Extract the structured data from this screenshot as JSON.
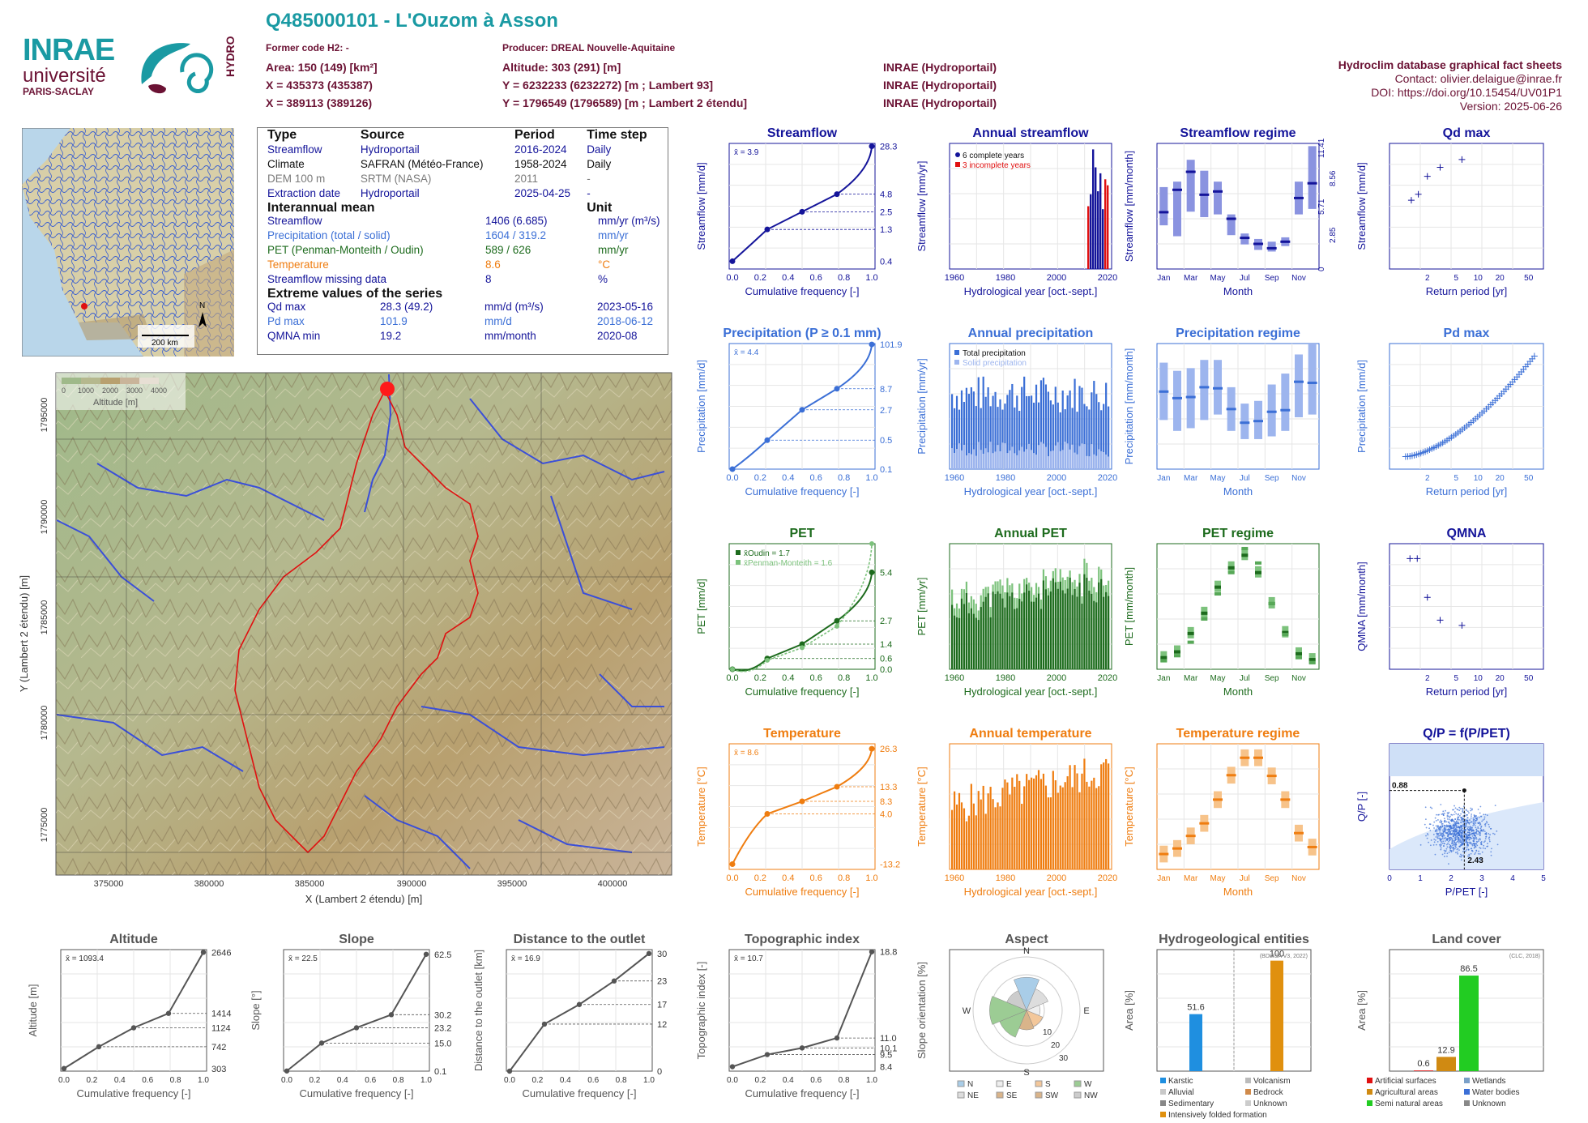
{
  "header": {
    "station_title": "Q485000101 - L'Ouzom à Asson",
    "former_code": "Former code H2: -",
    "producer": "Producer: DREAL Nouvelle-Aquitaine",
    "area": "Area: 150 (149) [km²]",
    "altitude": "Altitude: 303 (291) [m]",
    "x93": "X = 435373 (435387)",
    "y93": "Y = 6232233 (6232272) [m ; Lambert 93]",
    "x2": "X = 389113 (389126)",
    "y2": "Y = 1796549 (1796589) [m ; Lambert 2 étendu]",
    "source1": "INRAE (Hydroportail)",
    "source2": "INRAE (Hydroportail)",
    "source3": "INRAE (Hydroportail)",
    "db_title": "Hydroclim database graphical fact sheets",
    "contact": "Contact: olivier.delaigue@inrae.fr",
    "doi": "DOI: https://doi.org/10.15454/UV01P1",
    "version": "Version: 2025-06-26"
  },
  "logos": {
    "inrae": "INRAE",
    "universite": "université",
    "paris_saclay": "PARIS-SACLAY",
    "hydro": "HYDRO"
  },
  "france_map": {
    "scale": "200 km",
    "north": "N"
  },
  "info_table": {
    "headers": [
      "Type",
      "Source",
      "Period",
      "Time step"
    ],
    "rows": [
      [
        "Streamflow",
        "Hydroportail",
        "2016-2024",
        "Daily"
      ],
      [
        "Climate",
        "SAFRAN (Météo-France)",
        "1958-2024",
        "Daily"
      ],
      [
        "DEM 100 m",
        "SRTM (NASA)",
        "2011",
        "-"
      ],
      [
        "Extraction date",
        "Hydroportail",
        "2025-04-25",
        "-"
      ]
    ],
    "interannual_title": "Interannual mean",
    "unit_title": "Unit",
    "interannual": [
      [
        "Streamflow",
        "1406 (6.685)",
        "mm/yr (m³/s)"
      ],
      [
        "Precipitation (total / solid)",
        "1604 / 319.2",
        "mm/yr"
      ],
      [
        "PET (Penman-Monteith / Oudin)",
        "589 / 626",
        "mm/yr"
      ],
      [
        "Temperature",
        "8.6",
        "°C"
      ],
      [
        "Streamflow missing data",
        "8",
        "%"
      ]
    ],
    "extreme_title": "Extreme values of the series",
    "extremes": [
      [
        "Qd max",
        "28.3 (49.2)",
        "mm/d (m³/s)",
        "2023-05-16"
      ],
      [
        "Pd max",
        "101.9",
        "mm/d",
        "2018-06-12"
      ],
      [
        "QMNA min",
        "19.2",
        "mm/month",
        "2020-08"
      ]
    ]
  },
  "catchment_map": {
    "legend_ticks": [
      "0",
      "1000",
      "2000",
      "3000",
      "4000"
    ],
    "legend_title": "Altitude [m]",
    "xlabel": "X (Lambert 2 étendu) [m]",
    "ylabel": "Y (Lambert 2 étendu) [m]",
    "xticks": [
      "375000",
      "380000",
      "385000",
      "390000",
      "395000",
      "400000"
    ],
    "yticks": [
      "1775000",
      "1780000",
      "1785000",
      "1790000",
      "1795000"
    ]
  },
  "colors": {
    "flow": "#14149a",
    "prec": "#3b6fd6",
    "prec_light": "#9db5ee",
    "pet": "#1d6b1d",
    "pet_light": "#7cc27c",
    "temp": "#ef7d10",
    "temp_light": "#f7c38a",
    "grey": "#555555",
    "regime_flow": "#8a93e0",
    "hydro_karstic": "#1f8fe0",
    "hydro_folded": "#e0900e",
    "lc_agri": "#d08a12",
    "lc_semi": "#22cc22",
    "lc_artif": "#e01010"
  },
  "panels": {
    "streamflow_cdf": {
      "title": "Streamflow",
      "ylabel": "Streamflow [mm/d]",
      "xlabel": "Cumulative frequency [-]",
      "mean": "x̄ = 3.9",
      "right_labels": [
        "28.3",
        "4.8",
        "2.5",
        "1.3",
        "0.4"
      ]
    },
    "annual_streamflow": {
      "title": "Annual streamflow",
      "ylabel": "Streamflow [mm/yr]",
      "xlabel": "Hydrological year [oct.-sept.]",
      "legend": [
        "6 complete years",
        "3 incomplete years"
      ]
    },
    "streamflow_regime": {
      "title": "Streamflow regime",
      "ylabel": "Streamflow [mm/month]",
      "xlabel": "Month",
      "right_labels": [
        "11.41",
        "8.56",
        "5.71",
        "2.85",
        "0"
      ]
    },
    "qd_max": {
      "title": "Qd max",
      "ylabel": "Streamflow [mm/d]",
      "xlabel": "Return period [yr]"
    },
    "precip_cdf": {
      "title": "Precipitation (P ≥ 0.1 mm)",
      "ylabel": "Precipitation [mm/d]",
      "xlabel": "Cumulative frequency [-]",
      "mean": "x̄ = 4.4",
      "right_labels": [
        "101.9",
        "8.7",
        "2.7",
        "0.5",
        "0.1"
      ]
    },
    "annual_precip": {
      "title": "Annual precipitation",
      "ylabel": "Precipitation [mm/yr]",
      "xlabel": "Hydrological year [oct.-sept.]",
      "legend": [
        "Total precipitation",
        "Solid precipitation"
      ]
    },
    "precip_regime": {
      "title": "Precipitation regime",
      "ylabel": "Precipitation [mm/month]",
      "xlabel": "Month"
    },
    "pd_max": {
      "title": "Pd max",
      "ylabel": "Precipitation [mm/d]",
      "xlabel": "Return period [yr]"
    },
    "pet_cdf": {
      "title": "PET",
      "ylabel": "PET [mm/d]",
      "xlabel": "Cumulative frequency [-]",
      "legend": [
        "x̄Oudin = 1.7",
        "x̄Penman-Monteith = 1.6"
      ],
      "right_labels": [
        "5.4",
        "2.7",
        "1.4",
        "0.6",
        "0.0"
      ]
    },
    "annual_pet": {
      "title": "Annual PET",
      "ylabel": "PET [mm/yr]",
      "xlabel": "Hydrological year [oct.-sept.]"
    },
    "pet_regime": {
      "title": "PET regime",
      "ylabel": "PET [mm/month]",
      "xlabel": "Month"
    },
    "qmna": {
      "title": "QMNA",
      "ylabel": "QMNA [mm/month]",
      "xlabel": "Return period [yr]"
    },
    "temp_cdf": {
      "title": "Temperature",
      "ylabel": "Temperature [°C]",
      "xlabel": "Cumulative frequency [-]",
      "mean": "x̄ = 8.6",
      "right_labels": [
        "26.3",
        "13.3",
        "8.3",
        "4.0",
        "-13.2"
      ]
    },
    "annual_temp": {
      "title": "Annual temperature",
      "ylabel": "Temperature [°C]",
      "xlabel": "Hydrological year [oct.-sept.]"
    },
    "temp_regime": {
      "title": "Temperature regime",
      "ylabel": "Temperature [°C]",
      "xlabel": "Month"
    },
    "qp": {
      "title": "Q/P = f(P/PET)",
      "ylabel": "Q/P [-]",
      "xlabel": "P/PET [-]",
      "val_y": "0.88",
      "val_x": "2.43"
    },
    "altitude": {
      "title": "Altitude",
      "ylabel": "Altitude [m]",
      "xlabel": "Cumulative frequency [-]",
      "mean": "x̄ = 1093.4",
      "right_labels": [
        "2646",
        "1414",
        "1124",
        "742",
        "303"
      ]
    },
    "slope": {
      "title": "Slope",
      "ylabel": "Slope [°]",
      "xlabel": "Cumulative frequency [-]",
      "mean": "x̄ = 22.5",
      "right_labels": [
        "62.5",
        "30.2",
        "23.2",
        "15.0",
        "0.1"
      ]
    },
    "distance": {
      "title": "Distance to the outlet",
      "ylabel": "Distance to the outlet [km]",
      "xlabel": "Cumulative frequency [-]",
      "mean": "x̄ = 16.9",
      "right_labels": [
        "30",
        "23",
        "17",
        "12",
        "0"
      ]
    },
    "topo": {
      "title": "Topographic index",
      "ylabel": "Topographic index [-]",
      "xlabel": "Cumulative frequency [-]",
      "mean": "x̄ = 10.7",
      "right_labels": [
        "18.8",
        "11.0",
        "10.1",
        "9.5",
        "8.4"
      ]
    },
    "aspect": {
      "title": "Aspect",
      "ylabel": "Slope orientation [%]",
      "dirs": [
        "N",
        "E",
        "S",
        "W"
      ],
      "legend": [
        "N",
        "E",
        "S",
        "W",
        "NE",
        "SE",
        "SW",
        "NW"
      ],
      "rings": [
        "10",
        "20",
        "30"
      ]
    },
    "hydrogeo": {
      "title": "Hydrogeological entities",
      "ylabel": "Area [%]",
      "note": "(BDLISA V3, 2022)",
      "bar_labels": [
        "51.6",
        "100"
      ],
      "legend": [
        "Karstic",
        "Volcanism",
        "Alluvial",
        "Bedrock",
        "Sedimentary",
        "Unknown",
        "Intensively folded formation"
      ]
    },
    "landcover": {
      "title": "Land cover",
      "ylabel": "Area [%]",
      "note": "(CLC, 2018)",
      "bar_labels": [
        "0.6",
        "12.9",
        "86.5"
      ],
      "legend": [
        "Artificial surfaces",
        "Wetlands",
        "Agricultural areas",
        "Water bodies",
        "Semi natural areas",
        "Unknown"
      ]
    }
  },
  "chart_data": [
    {
      "type": "line",
      "id": "streamflow_cdf",
      "title": "Streamflow",
      "x": [
        0,
        0.25,
        0.5,
        0.75,
        1.0
      ],
      "y": [
        0.4,
        1.3,
        2.5,
        4.8,
        28.3
      ],
      "ylog": true,
      "ylim": [
        0.3,
        30
      ]
    },
    {
      "type": "bar",
      "id": "annual_streamflow",
      "title": "Annual streamflow",
      "x": [
        2016,
        2017,
        2018,
        2019,
        2020,
        2021,
        2022,
        2023,
        2024
      ],
      "values": [
        1050,
        1250,
        2000,
        1700,
        1300,
        1600,
        1000,
        1500,
        1400
      ],
      "ylim": [
        0,
        2100
      ],
      "xlim": [
        1958,
        2025
      ]
    },
    {
      "type": "bar",
      "id": "streamflow_regime",
      "title": "Streamflow regime",
      "categories": [
        "Jan",
        "Feb",
        "Mar",
        "Apr",
        "May",
        "Jun",
        "Jul",
        "Aug",
        "Sep",
        "Oct",
        "Nov",
        "Dec"
      ],
      "median": [
        104,
        145,
        178,
        136,
        142,
        92,
        57,
        46,
        38,
        50,
        130,
        157
      ],
      "low": [
        80,
        60,
        105,
        95,
        100,
        62,
        45,
        35,
        32,
        42,
        100,
        110
      ],
      "high": [
        150,
        160,
        200,
        180,
        160,
        100,
        65,
        55,
        50,
        58,
        160,
        225
      ],
      "ylim": [
        0,
        230
      ]
    },
    {
      "type": "scatter",
      "id": "qd_max",
      "title": "Qd max",
      "x": [
        1.2,
        1.5,
        2.0,
        3.0,
        6.0
      ],
      "y": [
        21.5,
        22.5,
        25.5,
        27.0,
        28.3
      ],
      "xlog": true,
      "xlim": [
        0.6,
        80
      ],
      "ylim": [
        10,
        31
      ]
    },
    {
      "type": "line",
      "id": "precip_cdf",
      "title": "Precipitation (P ≥ 0.1 mm)",
      "x": [
        0,
        0.25,
        0.5,
        0.75,
        1.0
      ],
      "y": [
        0.1,
        0.5,
        2.7,
        8.7,
        101.9
      ],
      "ylog": true
    },
    {
      "type": "bar",
      "id": "annual_precip",
      "title": "Annual precipitation",
      "x_start": 1959,
      "x_end": 2024,
      "ylim": [
        500,
        2600
      ]
    },
    {
      "type": "bar",
      "id": "precip_regime",
      "title": "Precipitation regime",
      "categories": [
        "Jan",
        "Feb",
        "Mar",
        "Apr",
        "May",
        "Jun",
        "Jul",
        "Aug",
        "Sep",
        "Oct",
        "Nov",
        "Dec"
      ],
      "median": [
        142,
        130,
        132,
        150,
        148,
        110,
        85,
        88,
        105,
        108,
        160,
        158
      ],
      "low": [
        90,
        70,
        75,
        90,
        100,
        70,
        55,
        55,
        60,
        70,
        95,
        100
      ],
      "high": [
        195,
        180,
        185,
        200,
        200,
        150,
        120,
        125,
        155,
        175,
        210,
        230
      ],
      "ylim": [
        0,
        230
      ]
    },
    {
      "type": "scatter",
      "id": "pd_max",
      "title": "Pd max",
      "x_start": 1.0,
      "x_end": 60,
      "y_start": 38,
      "y_end": 102,
      "xlog": true,
      "ylim": [
        30,
        110
      ]
    },
    {
      "type": "line",
      "id": "pet_cdf",
      "title": "PET",
      "series": [
        {
          "name": "Oudin",
          "x": [
            0,
            0.25,
            0.5,
            0.75,
            1.0
          ],
          "y": [
            0.0,
            0.6,
            1.4,
            2.7,
            5.4
          ]
        },
        {
          "name": "Penman-Monteith",
          "x": [
            0,
            0.25,
            0.5,
            0.75,
            1.0
          ],
          "y": [
            0.0,
            0.5,
            1.2,
            2.4,
            7.0
          ]
        }
      ],
      "ylim": [
        0,
        7
      ]
    },
    {
      "type": "bar",
      "id": "annual_pet",
      "title": "Annual PET",
      "x_start": 1959,
      "x_end": 2024,
      "ylim": [
        450,
        720
      ]
    },
    {
      "type": "bar",
      "id": "pet_regime",
      "title": "PET regime",
      "categories": [
        "Jan",
        "Feb",
        "Mar",
        "Apr",
        "May",
        "Jun",
        "Jul",
        "Aug",
        "Sep",
        "Oct",
        "Nov",
        "Dec"
      ],
      "oudin": [
        12,
        18,
        37,
        58,
        85,
        105,
        118,
        100,
        68,
        38,
        16,
        10
      ],
      "pm": [
        9,
        14,
        28,
        52,
        78,
        100,
        125,
        110,
        68,
        36,
        12,
        7
      ],
      "ylim": [
        0,
        130
      ]
    },
    {
      "type": "scatter",
      "id": "qmna",
      "title": "QMNA",
      "x": [
        1.15,
        1.45,
        2.0,
        3.0,
        6.0
      ],
      "y": [
        48.5,
        48.5,
        31.5,
        21.5,
        19.2
      ],
      "xlog": true,
      "ylim": [
        0,
        55
      ]
    },
    {
      "type": "line",
      "id": "temp_cdf",
      "title": "Temperature",
      "x": [
        0,
        0.25,
        0.5,
        0.75,
        1.0
      ],
      "y": [
        -13.2,
        4.0,
        8.3,
        13.3,
        26.3
      ],
      "ylim": [
        -15,
        28
      ]
    },
    {
      "type": "bar",
      "id": "annual_temp",
      "title": "Annual temperature",
      "x_start": 1959,
      "x_end": 2024,
      "ylim": [
        6,
        11
      ]
    },
    {
      "type": "bar",
      "id": "temp_regime",
      "title": "Temperature regime",
      "categories": [
        "Jan",
        "Feb",
        "Mar",
        "Apr",
        "May",
        "Jun",
        "Jul",
        "Aug",
        "Sep",
        "Oct",
        "Nov",
        "Dec"
      ],
      "median": [
        2.2,
        3.0,
        4.8,
        6.6,
        10.0,
        13.5,
        16.0,
        16.0,
        13.4,
        10.0,
        5.2,
        3.2
      ],
      "ylim": [
        0,
        18
      ]
    },
    {
      "type": "scatter",
      "id": "qp",
      "title": "Q/P = f(P/PET)",
      "xlim": [
        0,
        5
      ],
      "ylim": [
        0,
        1.4
      ],
      "point": [
        2.43,
        0.88
      ]
    },
    {
      "type": "line",
      "id": "altitude",
      "x": [
        0,
        0.25,
        0.5,
        0.75,
        1.0
      ],
      "y": [
        303,
        742,
        1124,
        1414,
        2646
      ],
      "ylim": [
        250,
        2700
      ]
    },
    {
      "type": "line",
      "id": "slope",
      "x": [
        0,
        0.25,
        0.5,
        0.75,
        1.0
      ],
      "y": [
        0.1,
        15.0,
        23.2,
        30.2,
        62.5
      ],
      "ylim": [
        0,
        65
      ]
    },
    {
      "type": "line",
      "id": "distance",
      "x": [
        0,
        0.25,
        0.5,
        0.75,
        1.0
      ],
      "y": [
        0,
        12,
        17,
        23,
        30
      ],
      "ylim": [
        0,
        31
      ]
    },
    {
      "type": "line",
      "id": "topo",
      "x": [
        0,
        0.25,
        0.5,
        0.75,
        1.0
      ],
      "y": [
        8.4,
        9.5,
        10.1,
        11.0,
        18.8
      ],
      "ylim": [
        8,
        19
      ]
    },
    {
      "type": "pie",
      "id": "aspect",
      "labels": [
        "N",
        "NE",
        "E",
        "SE",
        "S",
        "SW",
        "W",
        "NW"
      ],
      "values": [
        17,
        12,
        7,
        9,
        10,
        15,
        19,
        11
      ]
    },
    {
      "type": "bar",
      "id": "hydrogeo",
      "categories": [
        "Karstic",
        "Intensively folded formation"
      ],
      "values": [
        51.6,
        100
      ],
      "ylim": [
        0,
        110
      ]
    },
    {
      "type": "bar",
      "id": "landcover",
      "categories": [
        "Artificial surfaces",
        "Agricultural areas",
        "Semi natural areas"
      ],
      "values": [
        0.6,
        12.9,
        86.5
      ],
      "ylim": [
        0,
        110
      ]
    }
  ]
}
